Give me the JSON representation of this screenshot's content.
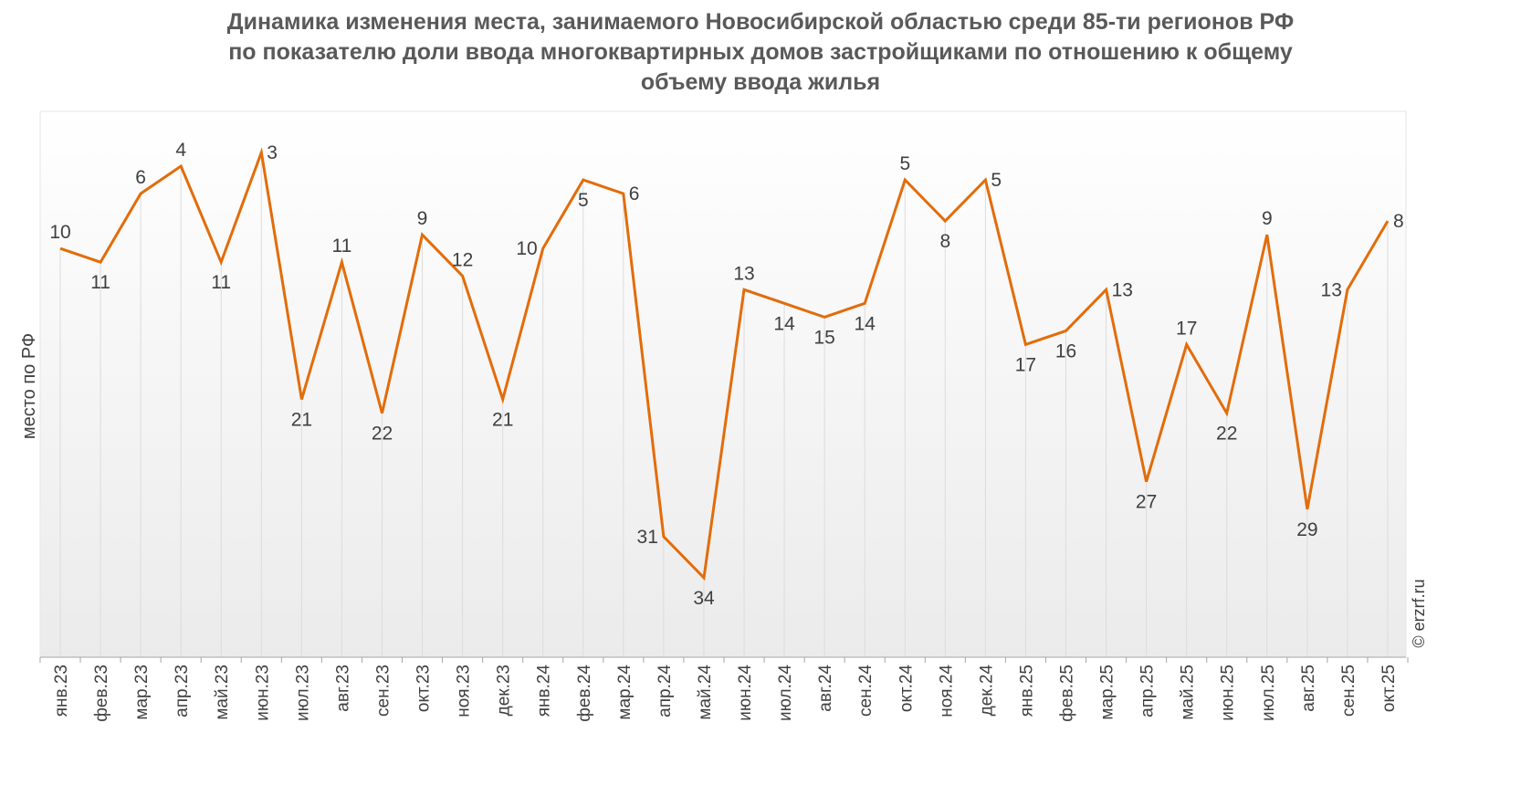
{
  "chart_data": {
    "type": "line",
    "title_lines": [
      "Динамика изменения места, занимаемого Новосибирской областью среди 85-ти регионов РФ",
      "по показателю доли ввода многоквартирных домов застройщиками по отношению к общему",
      "объему ввода жилья"
    ],
    "ylabel": "место по РФ",
    "xlabel": "",
    "y_axis_inverted": true,
    "grid": "vertical drop lines per point",
    "categories": [
      "янв.23",
      "фев.23",
      "мар.23",
      "апр.23",
      "май.23",
      "июн.23",
      "июл.23",
      "авг.23",
      "сен.23",
      "окт.23",
      "ноя.23",
      "дек.23",
      "янв.24",
      "фев.24",
      "мар.24",
      "апр.24",
      "май.24",
      "июн.24",
      "июл.24",
      "авг.24",
      "сен.24",
      "окт.24",
      "ноя.24",
      "дек.24",
      "янв.25",
      "фев.25",
      "мар.25",
      "апр.25",
      "май.25",
      "июн.25",
      "июл.25",
      "авг.25",
      "сен.25",
      "окт.25"
    ],
    "series": [
      {
        "values": [
          10,
          11,
          6,
          4,
          11,
          3,
          21,
          11,
          22,
          9,
          12,
          21,
          10,
          5,
          6,
          31,
          34,
          13,
          14,
          15,
          14,
          5,
          8,
          5,
          17,
          16,
          13,
          27,
          17,
          22,
          9,
          29,
          13,
          8
        ],
        "label_position": [
          "above",
          "below",
          "above",
          "above",
          "below",
          "right",
          "below",
          "above",
          "below",
          "above",
          "above",
          "below",
          "left",
          "below",
          "right",
          "left",
          "below",
          "above",
          "below",
          "below",
          "below",
          "above",
          "below",
          "right",
          "below",
          "below",
          "right",
          "below",
          "above",
          "below",
          "above",
          "below",
          "left",
          "right"
        ],
        "color": "#E36C09"
      }
    ],
    "watermark": "© erzrf.ru"
  }
}
